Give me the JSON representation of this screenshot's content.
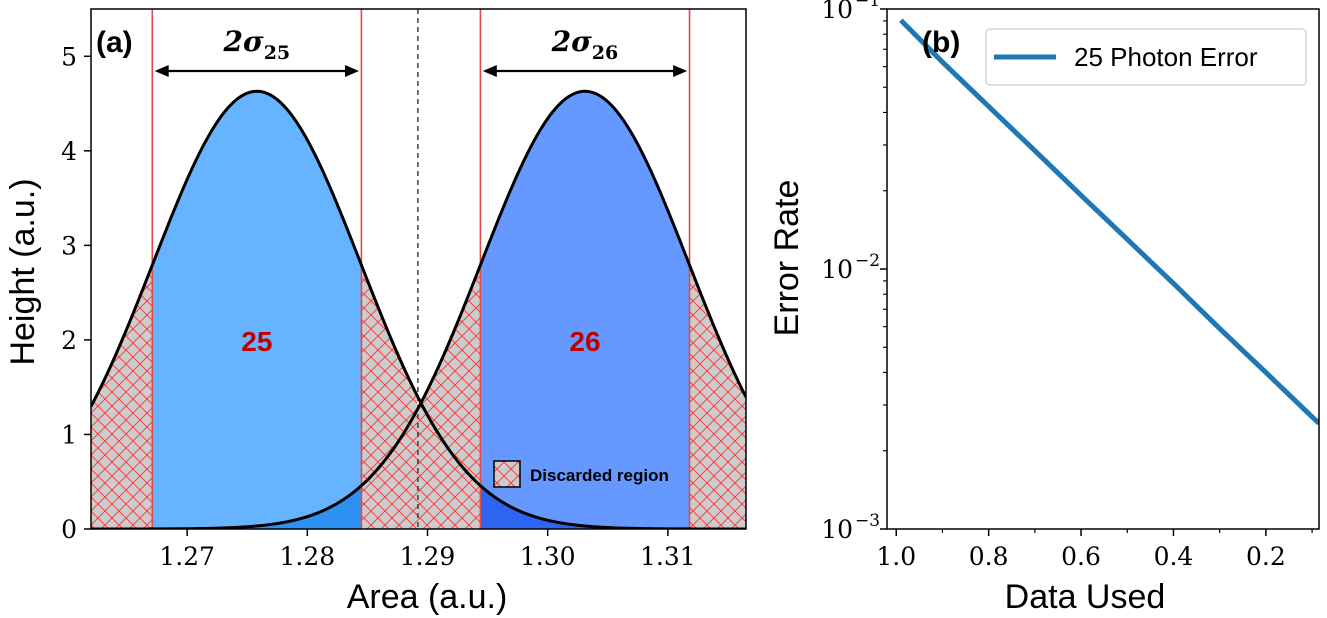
{
  "chart_data": [
    {
      "type": "area",
      "panel_label": "(a)",
      "xlabel": "Area (a.u.)",
      "ylabel": "Height (a.u.)",
      "xlim": [
        1.262,
        1.3165
      ],
      "ylim": [
        0,
        5.5
      ],
      "xticks": [
        1.27,
        1.28,
        1.29,
        1.3,
        1.31
      ],
      "xtick_labels": [
        "1.27",
        "1.28",
        "1.29",
        "1.30",
        "1.31"
      ],
      "yticks": [
        0,
        1,
        2,
        3,
        4,
        5
      ],
      "ytick_labels": [
        "0",
        "1",
        "2",
        "3",
        "4",
        "5"
      ],
      "series": [
        {
          "name": "25",
          "label": "25",
          "mu": 1.2758,
          "sigma": 0.00865,
          "amplitude": 4.63,
          "color": "#66b3ff",
          "tail_color": "#2e90f0"
        },
        {
          "name": "26",
          "label": "26",
          "mu": 1.3031,
          "sigma": 0.00865,
          "amplitude": 4.63,
          "color": "#6699ff",
          "tail_color": "#2d64f2"
        }
      ],
      "region_lines": [
        1.2671,
        1.2845,
        1.2944,
        1.3118
      ],
      "threshold": 1.2892,
      "annotations": [
        {
          "text_main": "2σ",
          "text_sub": "25",
          "from": 1.2673,
          "to": 1.2843
        },
        {
          "text_main": "2σ",
          "text_sub": "26",
          "from": 1.2946,
          "to": 1.3116
        }
      ],
      "legend": {
        "label": "Discarded region",
        "position": "lower-right"
      },
      "colors": {
        "discard_fill": "#cccccc",
        "hatch": "#ff3333",
        "region_line": "#e24a4a"
      }
    },
    {
      "type": "line",
      "panel_label": "(b)",
      "xlabel": "Data Used",
      "ylabel": "Error Rate",
      "xlim": [
        1.02,
        0.085
      ],
      "x_inverted": true,
      "yscale": "log",
      "ylim": [
        0.001,
        0.1
      ],
      "xticks": [
        1.0,
        0.8,
        0.6,
        0.4,
        0.2
      ],
      "xtick_labels": [
        "1.0",
        "0.8",
        "0.6",
        "0.4",
        "0.2"
      ],
      "yticks": [
        0.1,
        0.01,
        0.001
      ],
      "ytick_labels": [
        {
          "base": "10",
          "exp": "−1"
        },
        {
          "base": "10",
          "exp": "−2"
        },
        {
          "base": "10",
          "exp": "−3"
        }
      ],
      "series": [
        {
          "name": "25 Photon Error",
          "x": [
            0.99,
            0.9,
            0.8,
            0.7,
            0.6,
            0.5,
            0.4,
            0.3,
            0.2,
            0.1,
            0.085
          ],
          "y": [
            0.0905,
            0.0625,
            0.0422,
            0.0285,
            0.0192,
            0.013,
            0.0088,
            0.0059,
            0.004,
            0.0027,
            0.00255
          ],
          "color": "#1f77b4"
        }
      ],
      "legend": {
        "position": "top-right"
      }
    }
  ]
}
